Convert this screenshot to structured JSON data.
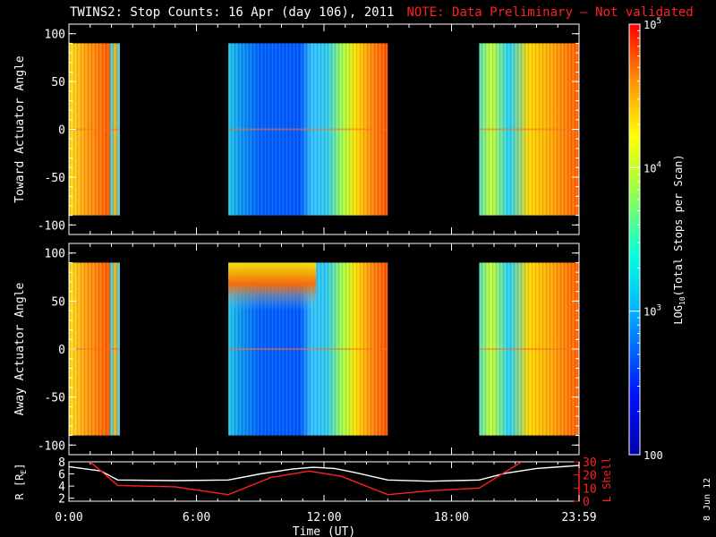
{
  "title": {
    "main": "TWINS2: Stop Counts: 16 Apr (day 106), 2011",
    "note": "NOTE: Data Preliminary – Not validated"
  },
  "stamp": "8 Jun 12",
  "colors": {
    "note": "#ff2020",
    "r_line": "#ffffff",
    "lshell_line": "#ff2020"
  },
  "chart_data": [
    {
      "type": "heatmap",
      "name": "toward",
      "ylabel": "Toward Actuator Angle",
      "xlim": [
        0,
        24
      ],
      "ylim": [
        -110,
        110
      ],
      "yticks": [
        "100",
        "50",
        "0",
        "-50",
        "-100"
      ],
      "ytick_values": [
        100,
        50,
        0,
        -50,
        -100
      ],
      "data_time_blocks": [
        [
          0,
          2.4
        ],
        [
          7.5,
          15.0
        ],
        [
          19.3,
          24.0
        ]
      ],
      "angle_range": [
        -90,
        90
      ]
    },
    {
      "type": "heatmap",
      "name": "away",
      "ylabel": "Away Actuator Angle",
      "xlim": [
        0,
        24
      ],
      "ylim": [
        -110,
        110
      ],
      "yticks": [
        "100",
        "50",
        "0",
        "-50",
        "-100"
      ],
      "ytick_values": [
        100,
        50,
        0,
        -50,
        -100
      ],
      "data_time_blocks": [
        [
          0,
          2.4
        ],
        [
          7.5,
          15.0
        ],
        [
          19.3,
          24.0
        ]
      ],
      "angle_range": [
        -90,
        90
      ]
    },
    {
      "type": "line",
      "name": "ephemeris",
      "xlabel": "Time (UT)",
      "xlim": [
        0,
        24
      ],
      "xticks": [
        "0:00",
        "6:00",
        "12:00",
        "18:00",
        "23:59"
      ],
      "xtick_values": [
        0,
        6,
        12,
        18,
        24
      ],
      "left_axis": {
        "label": "R [R",
        "label_sub": "E",
        "label_end": "]",
        "ylim": [
          1.5,
          8
        ],
        "ticks": [
          "8",
          "6",
          "4",
          "2"
        ],
        "tick_values": [
          8,
          6,
          4,
          2
        ]
      },
      "right_axis": {
        "label": "L Shell",
        "ylim": [
          0,
          30
        ],
        "ticks": [
          "30",
          "20",
          "10",
          "0"
        ],
        "tick_values": [
          30,
          20,
          10,
          0
        ]
      },
      "series": [
        {
          "axis": "left",
          "x": [
            0,
            1.5,
            2.3,
            5,
            7.5,
            9,
            10.5,
            11.5,
            12.5,
            13.5,
            15,
            17,
            19.3,
            20.5,
            22,
            24
          ],
          "y": [
            7.2,
            6.5,
            5.0,
            4.9,
            5.0,
            6.0,
            6.8,
            7.1,
            6.9,
            6.2,
            5.0,
            4.8,
            5.0,
            6.1,
            6.9,
            7.4
          ]
        },
        {
          "axis": "right",
          "x": [
            1.0,
            2.3,
            5,
            7.5,
            9.5,
            11.3,
            12.8,
            15,
            17,
            19.3,
            20.8,
            21.3
          ],
          "y": [
            30,
            12,
            11,
            5,
            18,
            23,
            19,
            5,
            8,
            10,
            25,
            30
          ]
        }
      ]
    },
    {
      "type": "colorbar",
      "name": "colorbar",
      "label": "LOG",
      "label_sub": "10",
      "label_tail": "(Total Stops per Scan)",
      "range": [
        100,
        100000
      ],
      "ticks": [
        "10",
        "10",
        "10",
        "100"
      ],
      "tick_exponents": [
        "5",
        "4",
        "3",
        ""
      ],
      "tick_values": [
        100000,
        10000,
        1000,
        100
      ]
    }
  ]
}
